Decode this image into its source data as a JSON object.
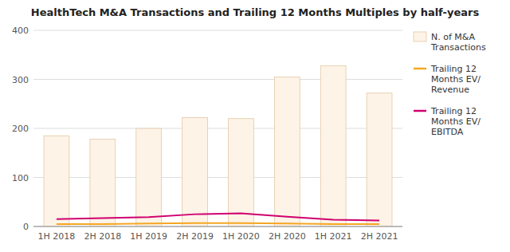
{
  "chart_data": {
    "type": "bar",
    "title": "HealthTech M&A Transactions and Trailing 12 Months Multiples by half-years",
    "categories": [
      "1H 2018",
      "2H 2018",
      "1H 2019",
      "2H 2019",
      "1H 2020",
      "2H 2020",
      "1H 2021",
      "2H 2021"
    ],
    "series": [
      {
        "name": "N. of M&A\nTransactions",
        "type": "bar",
        "color": "#fdf3e7",
        "values": [
          185,
          178,
          200,
          222,
          220,
          305,
          328,
          272
        ]
      },
      {
        "name": "Trailing 12\nMonths EV/\nRevenue",
        "type": "line",
        "color": "#f5a623",
        "values": [
          5,
          5,
          6,
          7,
          7,
          6,
          5,
          5
        ]
      },
      {
        "name": "Trailing 12\nMonths EV/\nEBITDA",
        "type": "line",
        "color": "#d0006f",
        "values": [
          15,
          17,
          19,
          25,
          27,
          20,
          14,
          12
        ]
      }
    ],
    "ylim": [
      0,
      400
    ],
    "yticks": [
      0,
      100,
      200,
      300,
      400
    ],
    "grid": true,
    "legend": "right"
  }
}
